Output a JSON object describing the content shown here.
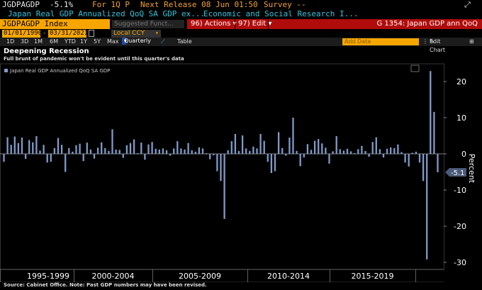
{
  "header": {
    "ticker": "JGDPAGDP",
    "value": "-5.1%",
    "for_label": "For 1Q P",
    "next_release": "Next Release 08 Jun 01:50",
    "survey": "Survey --",
    "description": "Japan Real GDP Annualized QoQ SA GDP ex...",
    "source": "Economic and Social Research I..."
  },
  "toolbar": {
    "index": "JGDPAGDP Index",
    "suggested": "Suggested Funct...",
    "actions": "96) Actions",
    "edit": "97) Edit",
    "graph_title": "G 1354: Japan GDP ann QoQ",
    "actions_caret": "▾",
    "edit_caret": "▾"
  },
  "range": {
    "start": "01/01/1990",
    "end": "03/31/2021",
    "currency": "Local CCY",
    "calendar_icon": "calendar-icon"
  },
  "periods": {
    "items": [
      "1D",
      "3D",
      "1M",
      "6M",
      "YTD",
      "1Y",
      "5Y",
      "Max"
    ],
    "frequency": "Quarterly",
    "table": "Table",
    "add_data": "Add Data",
    "edit_chart": "Edit Chart"
  },
  "chart_title": "Deepening Recession",
  "chart_subtitle": "Full brunt of pandemic won't be evident until this quarter's data",
  "footer": "Source: Cabinet Office. Note: Past GDP numbers may have been revised.",
  "colors": {
    "bar": "#7f9bc9",
    "accent": "#f7a600",
    "menu": "#b00c0c"
  },
  "chart_data": {
    "type": "bar",
    "title": "Deepening Recession",
    "subtitle": "Full brunt of pandemic won't be evident until this quarter's data",
    "legend": [
      "Japan Real GDP Annualized QoQ SA GDP"
    ],
    "legend_position": "top-left",
    "ylabel": "Percent",
    "ylim": [
      -31,
      25
    ],
    "yticks": [
      20,
      10,
      0,
      -10,
      -20,
      -30
    ],
    "x_period_labels": [
      "1995-1999",
      "2000-2004",
      "2005-2009",
      "2010-2014",
      "2015-2019"
    ],
    "last_value_label": "-5.1",
    "series": [
      {
        "name": "Japan Real GDP Annualized QoQ SA GDP",
        "values": [
          -2.2,
          4.6,
          2.5,
          4.8,
          3.0,
          4.5,
          -1.4,
          3.8,
          3.2,
          4.9,
          0.9,
          2.5,
          -2.4,
          -2.2,
          1.6,
          4.4,
          2.5,
          -5.0,
          1.6,
          0.6,
          2.4,
          2.8,
          -2.0,
          3.1,
          1.2,
          -1.3,
          1.7,
          3.2,
          1.6,
          0.8,
          6.8,
          1.2,
          1.1,
          -1.1,
          2.4,
          3.0,
          4.0,
          0.2,
          3.1,
          -1.6,
          2.6,
          3.3,
          1.4,
          1.2,
          1.5,
          1.0,
          -0.5,
          1.5,
          3.5,
          1.5,
          1.2,
          3.0,
          1.0,
          0.6,
          1.8,
          1.5,
          0.2,
          -1.5,
          -0.4,
          -4.8,
          -7.5,
          -18.0,
          1.0,
          3.5,
          5.5,
          0.8,
          5.1,
          1.5,
          0.8,
          2.0,
          1.5,
          5.5,
          3.6,
          -2.2,
          -5.3,
          -4.8,
          6.0,
          1.6,
          -0.5,
          4.5,
          10.0,
          0.8,
          -3.4,
          -1.0,
          2.7,
          1.1,
          3.6,
          4.1,
          2.9,
          1.7,
          -2.7,
          0.7,
          4.9,
          1.3,
          0.9,
          1.4,
          0.7,
          0.2,
          1.3,
          2.2,
          0.8,
          -0.8,
          3.3,
          4.6,
          1.3,
          -1.0,
          1.4,
          1.8,
          1.6,
          2.6,
          0.5,
          -2.4,
          -3.5,
          0.3,
          0.6,
          -2.4,
          -7.5,
          -29.2,
          22.9,
          11.6,
          -5.1
        ]
      }
    ]
  }
}
